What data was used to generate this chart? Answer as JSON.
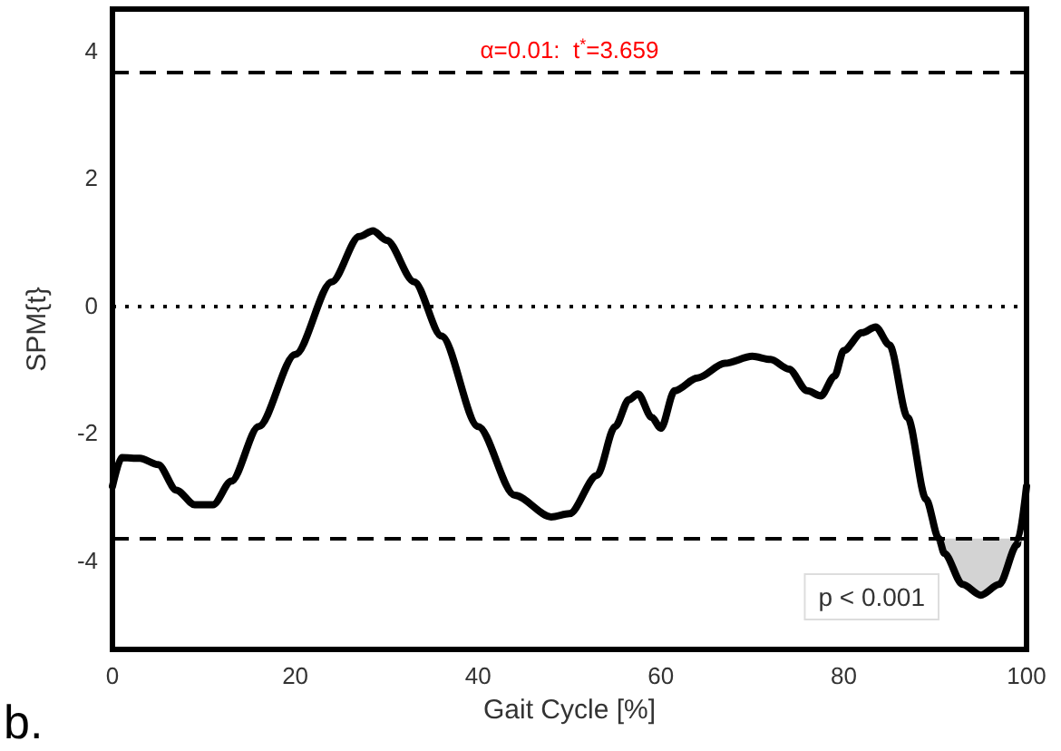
{
  "chart_data": {
    "type": "line",
    "xlabel": "Gait Cycle [%]",
    "ylabel": "SPM{t}",
    "x": [
      0,
      1,
      3,
      5,
      7,
      9,
      11,
      13,
      16,
      20,
      24,
      27,
      28.5,
      30,
      33,
      36,
      40,
      44,
      48,
      50,
      53,
      55,
      56.5,
      57.5,
      59,
      60,
      61.5,
      64,
      67,
      70,
      72,
      74,
      76,
      77.5,
      79,
      80,
      82,
      83.5,
      85,
      87,
      89,
      90.4,
      91,
      93,
      95,
      97,
      99,
      99.1,
      100
    ],
    "series": [
      {
        "color": "#000000",
        "values": [
          -2.84,
          -2.39,
          -2.4,
          -2.5,
          -2.9,
          -3.13,
          -3.13,
          -2.76,
          -1.9,
          -0.77,
          0.37,
          1.08,
          1.17,
          1.02,
          0.37,
          -0.48,
          -1.9,
          -2.98,
          -3.32,
          -3.27,
          -2.67,
          -1.9,
          -1.48,
          -1.39,
          -1.76,
          -1.93,
          -1.34,
          -1.14,
          -0.91,
          -0.8,
          -0.85,
          -1.0,
          -1.34,
          -1.42,
          -1.11,
          -0.71,
          -0.43,
          -0.34,
          -0.62,
          -1.76,
          -3.04,
          -3.66,
          -3.89,
          -4.38,
          -4.55,
          -4.38,
          -3.75,
          -3.66,
          -2.84
        ],
        "lower": [
          null,
          null,
          null,
          null,
          null,
          null,
          null,
          null,
          null,
          null,
          null,
          null,
          null,
          null,
          null,
          null,
          null,
          null,
          null,
          null,
          null,
          null,
          null,
          null,
          null,
          null,
          null,
          null,
          null,
          null,
          null,
          null,
          null,
          null,
          null,
          null,
          null,
          null,
          null,
          null,
          null,
          -3.66,
          -3.89,
          -4.38,
          -4.55,
          -4.38,
          -3.75,
          -3.66,
          null
        ],
        "upper": [
          null,
          null,
          null,
          null,
          null,
          null,
          null,
          null,
          null,
          null,
          null,
          null,
          null,
          null,
          null,
          null,
          null,
          null,
          null,
          null,
          null,
          null,
          null,
          null,
          null,
          null,
          null,
          null,
          null,
          null,
          null,
          null,
          null,
          null,
          null,
          null,
          null,
          null,
          null,
          null,
          null,
          -3.659,
          -3.659,
          -3.659,
          -3.659,
          -3.659,
          -3.659,
          -3.659,
          null
        ]
      }
    ],
    "xlim": [
      0,
      100
    ],
    "xticks": [
      0,
      20,
      40,
      60,
      80,
      100
    ],
    "ylim": [
      -5.4,
      4.65
    ],
    "yticks": [
      -4,
      -2,
      0,
      2,
      4
    ],
    "ref_lines": [
      {
        "axis": "y",
        "value": 3.659,
        "label": "α=0.01:  t$^{*}$=3.659",
        "line_style": "dashed",
        "color": "#000000"
      },
      {
        "axis": "y",
        "value": 0,
        "line_style": "dotted",
        "color": "#000000"
      },
      {
        "axis": "y",
        "value": -3.659,
        "line_style": "dashed",
        "color": "#000000"
      }
    ],
    "annotations": [
      "p < 0.001",
      "b."
    ],
    "grid": false,
    "marker": "none",
    "line_style": "solid"
  }
}
